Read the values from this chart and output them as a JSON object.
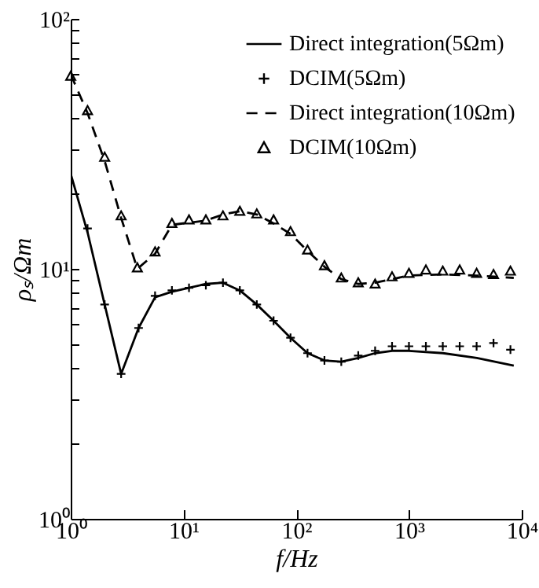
{
  "chart_data": {
    "type": "line",
    "xlabel": "f/Hz",
    "ylabel": "ρₛ/Ωm",
    "log": "xy",
    "legend": "top right",
    "grid": false,
    "xlim": [
      1,
      10000
    ],
    "ylim": [
      1,
      100
    ],
    "xticks": [
      {
        "value": 1,
        "label": "10⁰"
      },
      {
        "value": 10,
        "label": "10¹"
      },
      {
        "value": 100,
        "label": "10²"
      },
      {
        "value": 1000,
        "label": "10³"
      },
      {
        "value": 10000,
        "label": "10⁴"
      }
    ],
    "yticks": [
      {
        "value": 1,
        "label": "10⁰"
      },
      {
        "value": 2,
        "label": null
      },
      {
        "value": 3,
        "label": null
      },
      {
        "value": 4,
        "label": null
      },
      {
        "value": 5,
        "label": null
      },
      {
        "value": 6,
        "label": null
      },
      {
        "value": 7,
        "label": null
      },
      {
        "value": 8,
        "label": null
      },
      {
        "value": 9,
        "label": null
      },
      {
        "value": 10,
        "label": "10¹"
      },
      {
        "value": 20,
        "label": null
      },
      {
        "value": 30,
        "label": null
      },
      {
        "value": 40,
        "label": null
      },
      {
        "value": 50,
        "label": null
      },
      {
        "value": 60,
        "label": null
      },
      {
        "value": 70,
        "label": null
      },
      {
        "value": 80,
        "label": null
      },
      {
        "value": 90,
        "label": null
      },
      {
        "value": 100,
        "label": "10²"
      }
    ],
    "series": [
      {
        "name": "Direct integration(5Ωm)",
        "line_style": "solid",
        "marker": "none",
        "color": "#000000",
        "x": [
          1,
          1.41,
          2,
          2.8,
          4,
          5.6,
          7.9,
          11.2,
          15.8,
          22.4,
          31.6,
          44.7,
          63,
          89,
          126,
          178,
          251,
          355,
          501,
          708,
          1000,
          2000,
          4000,
          8500
        ],
        "values": [
          24,
          14,
          7.2,
          3.8,
          5.8,
          7.7,
          8.1,
          8.4,
          8.7,
          8.8,
          8.2,
          7.2,
          6.2,
          5.3,
          4.6,
          4.3,
          4.25,
          4.4,
          4.6,
          4.7,
          4.7,
          4.6,
          4.4,
          4.1
        ]
      },
      {
        "name": "DCIM(5Ωm)",
        "type": "scatter",
        "marker": "cross",
        "color": "#000000",
        "x": [
          1.41,
          2,
          2.8,
          4,
          5.6,
          7.9,
          11.2,
          15.8,
          22.4,
          31.6,
          44.7,
          63,
          89,
          126,
          178,
          251,
          355,
          501,
          708,
          1000,
          1413,
          1995,
          2818,
          3981,
          5623,
          7943
        ],
        "values": [
          14.5,
          7.2,
          3.8,
          5.8,
          7.8,
          8.2,
          8.4,
          8.6,
          8.8,
          8.2,
          7.2,
          6.2,
          5.3,
          4.6,
          4.3,
          4.25,
          4.5,
          4.7,
          4.9,
          4.9,
          4.9,
          4.9,
          4.9,
          4.9,
          5.05,
          4.75
        ]
      },
      {
        "name": "Direct integration(10Ωm)",
        "line_style": "dashed",
        "marker": "none",
        "color": "#000000",
        "x": [
          1,
          1.41,
          2,
          2.8,
          3.9,
          5.6,
          7.9,
          11.2,
          15.8,
          22.4,
          31.6,
          44.7,
          63,
          89,
          126,
          178,
          251,
          355,
          501,
          708,
          1000,
          2000,
          4000,
          8500
        ],
        "values": [
          60,
          42,
          27,
          16,
          10,
          11.5,
          15,
          15.3,
          15.6,
          16.5,
          17,
          16.5,
          15.2,
          13.8,
          11.8,
          10.2,
          9.1,
          8.7,
          8.8,
          9.1,
          9.4,
          9.5,
          9.4,
          9.2
        ]
      },
      {
        "name": "DCIM(10Ωm)",
        "type": "scatter",
        "marker": "triangle",
        "color": "#000000",
        "x": [
          1,
          1.41,
          2,
          2.8,
          3.9,
          5.6,
          7.9,
          11.2,
          15.8,
          22.4,
          31.6,
          44.7,
          63,
          89,
          126,
          178,
          251,
          355,
          501,
          708,
          1000,
          1413,
          1995,
          2818,
          3981,
          5623,
          7943
        ],
        "values": [
          59,
          43,
          28,
          16.3,
          10.1,
          11.7,
          15.2,
          15.7,
          15.7,
          16.3,
          17,
          16.6,
          15.7,
          14.1,
          11.9,
          10.3,
          9.2,
          8.8,
          8.7,
          9.3,
          9.6,
          9.9,
          9.8,
          9.9,
          9.6,
          9.5,
          9.8
        ]
      }
    ]
  }
}
